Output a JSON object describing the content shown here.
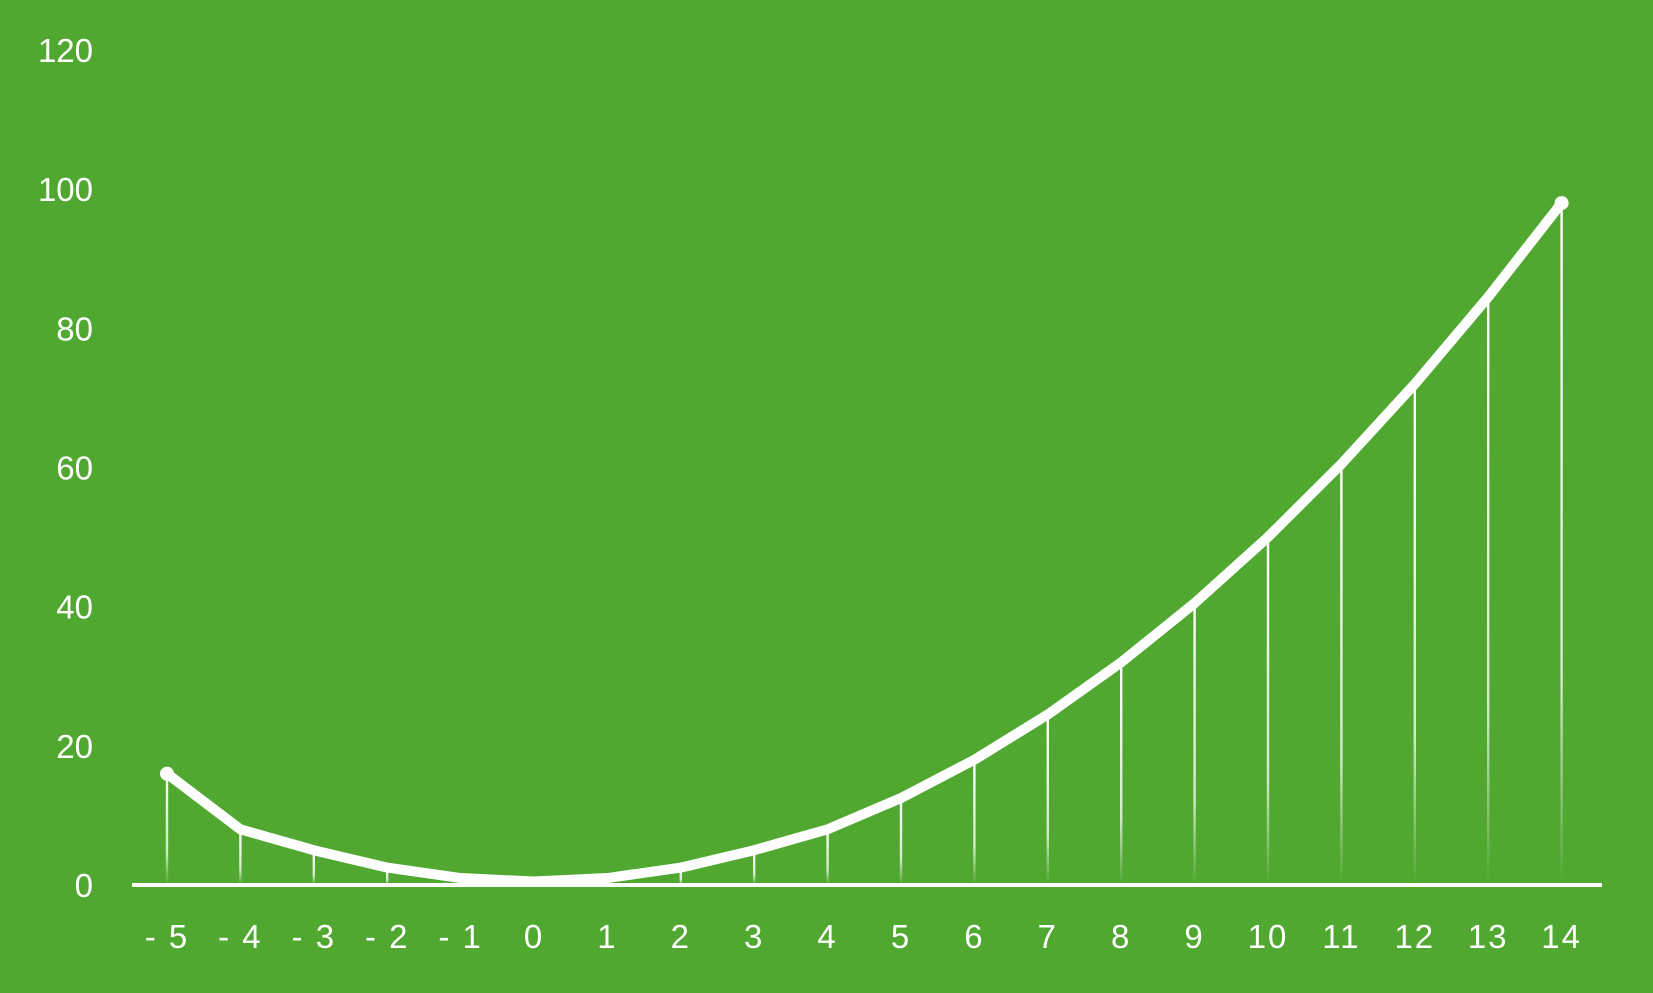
{
  "colors": {
    "background": "#50a830",
    "line": "#ffffff",
    "axis": "#ffffff",
    "text": "#ffffff"
  },
  "chart_data": {
    "type": "line",
    "title": "",
    "xlabel": "",
    "ylabel": "",
    "x": [
      -5,
      -4,
      -3,
      -2,
      -1,
      0,
      1,
      2,
      3,
      4,
      5,
      6,
      7,
      8,
      9,
      10,
      11,
      12,
      13,
      14
    ],
    "x_tick_labels": [
      "- 5",
      "- 4",
      "- 3",
      "- 2",
      "- 1",
      "0",
      "1",
      "2",
      "3",
      "4",
      "5",
      "6",
      "7",
      "8",
      "9",
      "10",
      "11",
      "12",
      "13",
      "14"
    ],
    "series": [
      {
        "values": [
          16,
          8,
          5,
          2.5,
          1,
          0.5,
          1,
          2.5,
          5,
          8,
          12.5,
          18,
          24.5,
          32,
          40.5,
          50,
          60.5,
          72,
          84.5,
          98
        ]
      }
    ],
    "y_ticks": [
      0,
      20,
      40,
      60,
      80,
      100,
      120
    ],
    "y_tick_labels": [
      "0",
      "20",
      "40",
      "60",
      "80",
      "100",
      "120"
    ],
    "ylim": [
      0,
      120
    ],
    "grid": false,
    "drop_lines": true,
    "legend": "none"
  }
}
